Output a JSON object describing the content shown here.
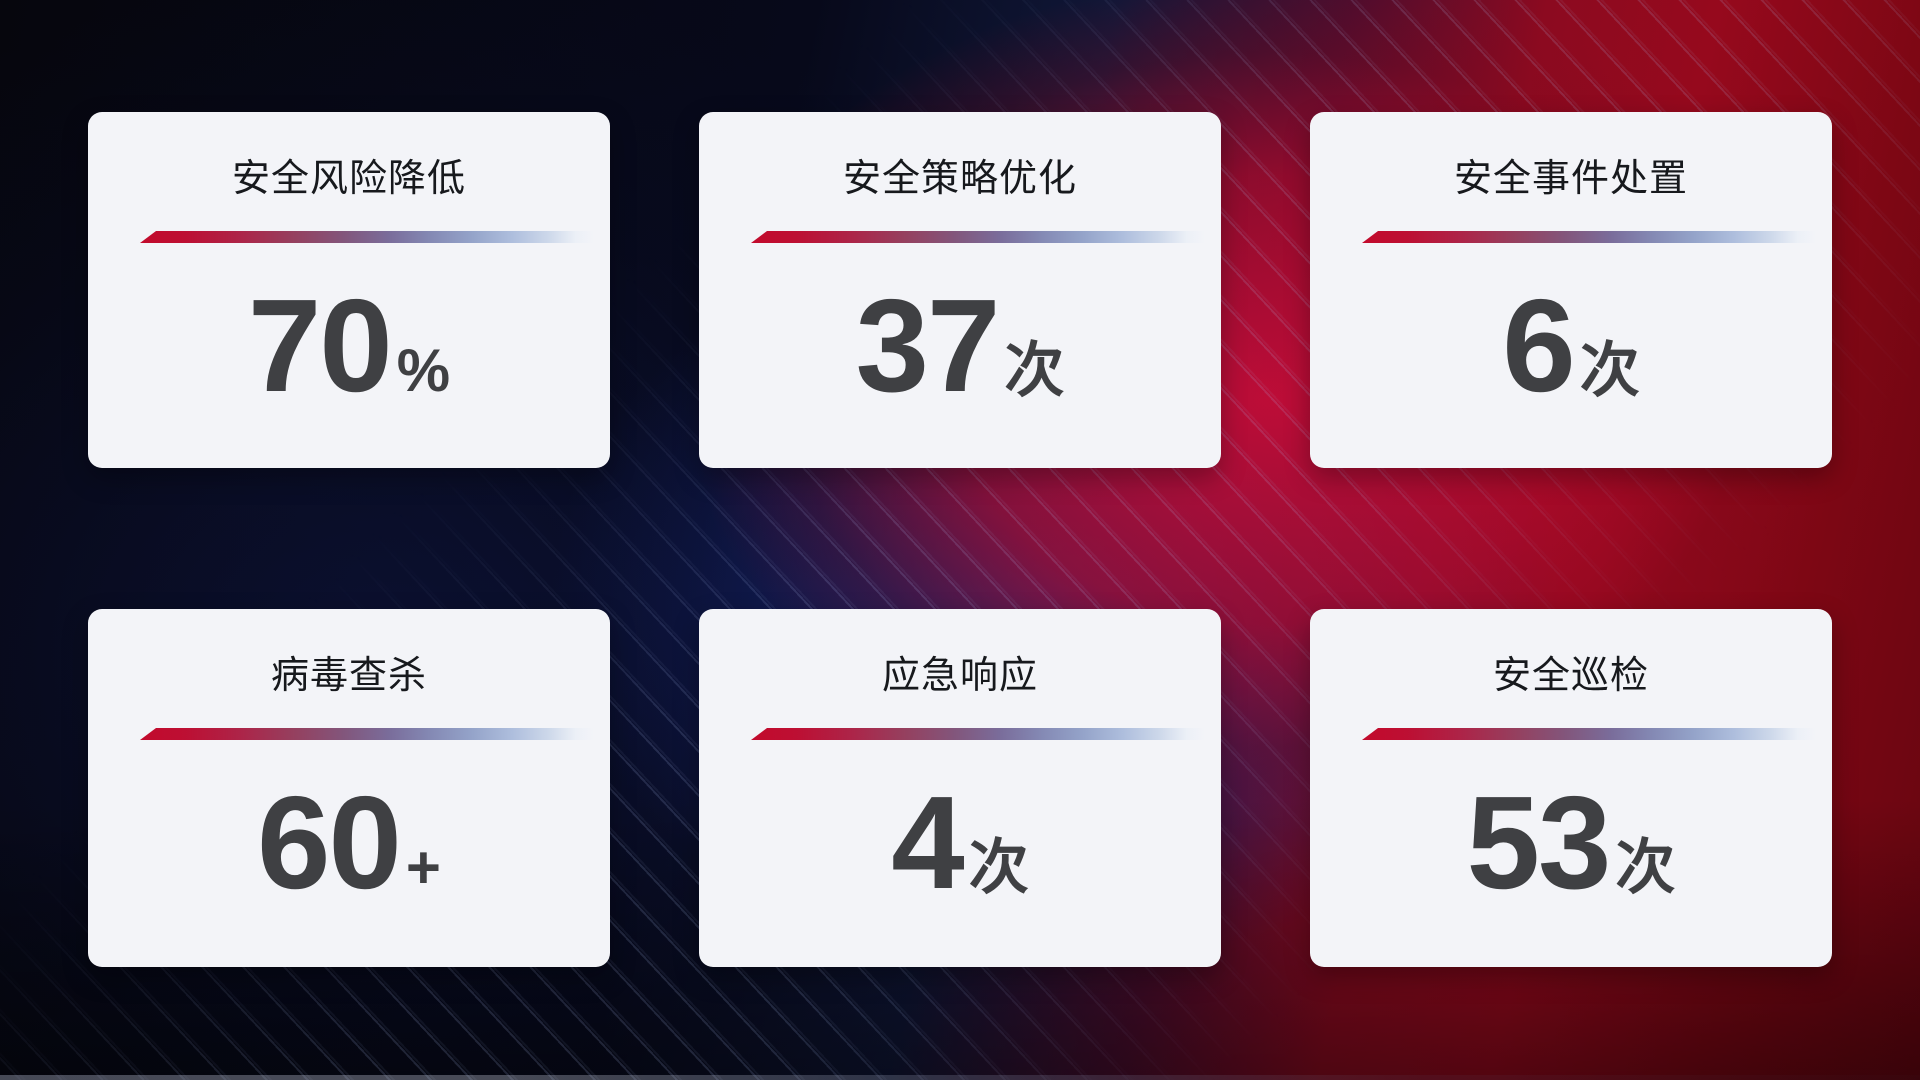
{
  "cards": [
    {
      "title": "安全风险降低",
      "value": "70",
      "unit": "%"
    },
    {
      "title": "安全策略优化",
      "value": "37",
      "unit": "次"
    },
    {
      "title": "安全事件处置",
      "value": "6",
      "unit": "次"
    },
    {
      "title": "病毒查杀",
      "value": "60",
      "unit": "+"
    },
    {
      "title": "应急响应",
      "value": "4",
      "unit": "次"
    },
    {
      "title": "安全巡检",
      "value": "53",
      "unit": "次"
    }
  ],
  "chart_data": {
    "type": "table",
    "categories": [
      "安全风险降低",
      "安全策略优化",
      "安全事件处置",
      "病毒查杀",
      "应急响应",
      "安全巡检"
    ],
    "values": [
      70,
      37,
      6,
      60,
      4,
      53
    ],
    "units": [
      "%",
      "次",
      "次",
      "+",
      "次",
      "次"
    ],
    "value_labels": [
      "70%",
      "37次",
      "6次",
      "60+",
      "4次",
      "53次"
    ],
    "legend_position": "none",
    "grid": false
  },
  "colors": {
    "card_background": "#f3f4f8",
    "title_text": "#17191d",
    "value_text": "#3f4043",
    "divider_red": "#c20a2c",
    "divider_blue": "#a9bbd8",
    "background_navy": "#0a0f2a",
    "background_blue": "#1d2f85",
    "background_red": "#8e0815",
    "background_crimson": "#a50d2f"
  }
}
